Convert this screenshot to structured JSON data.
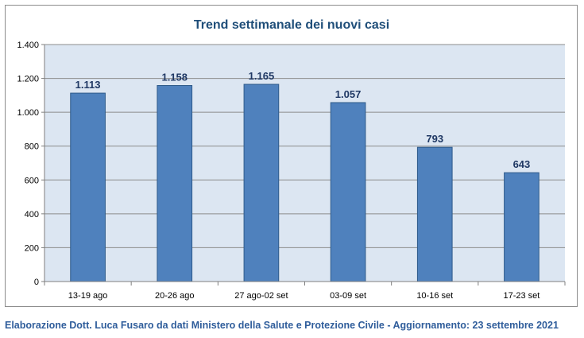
{
  "chart_data": {
    "type": "bar",
    "title": "Trend settimanale dei nuovi casi",
    "categories": [
      "13-19 ago",
      "20-26 ago",
      "27 ago-02 set",
      "03-09 set",
      "10-16 set",
      "17-23 set"
    ],
    "values": [
      1113,
      1158,
      1165,
      1057,
      793,
      643
    ],
    "value_labels": [
      "1.113",
      "1.158",
      "1.165",
      "1.057",
      "793",
      "643"
    ],
    "ylim": [
      0,
      1400
    ],
    "yticks": [
      0,
      200,
      400,
      600,
      800,
      1000,
      1200,
      1400
    ],
    "ytick_labels": [
      "0",
      "200",
      "400",
      "600",
      "800",
      "1.000",
      "1.200",
      "1.400"
    ],
    "grid": true,
    "legend": "none",
    "colors": {
      "bar_fill": "#4f81bd",
      "bar_stroke": "#2e5a8a",
      "plot_background": "#dce6f2",
      "gridline": "#8c8c8c",
      "title": "#1f4e79",
      "value_label": "#1f3864"
    }
  },
  "footer": {
    "caption": "Elaborazione Dott. Luca Fusaro da dati Ministero della Salute e Protezione Civile - Aggiornamento: 23 settembre 2021"
  }
}
